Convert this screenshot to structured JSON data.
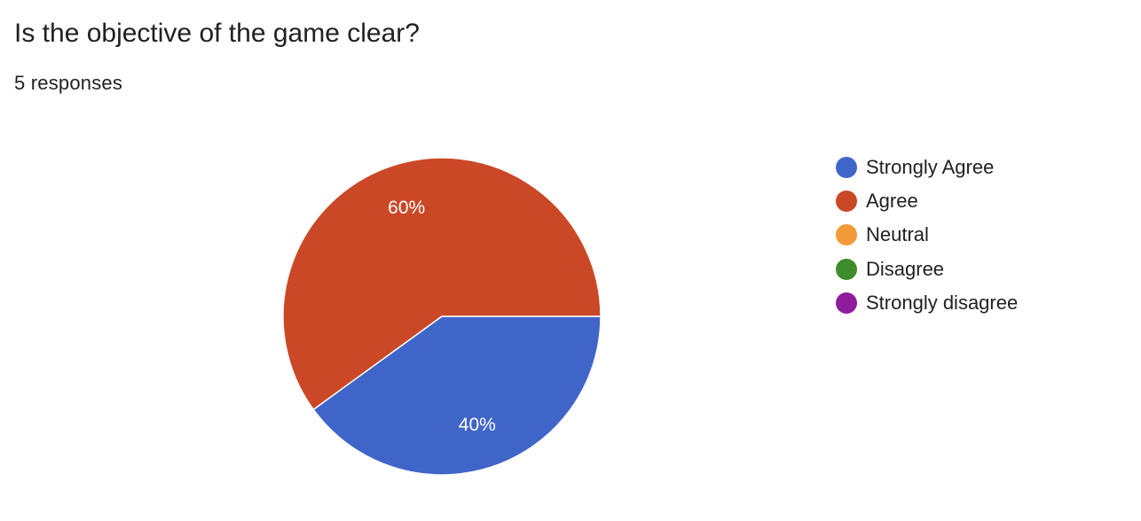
{
  "question": {
    "title": "Is the objective of the game clear?",
    "responses": "5 responses"
  },
  "chart_data": {
    "type": "pie",
    "categories": [
      "Strongly Agree",
      "Agree",
      "Neutral",
      "Disagree",
      "Strongly disagree"
    ],
    "values": [
      40,
      60,
      0,
      0,
      0
    ],
    "data_labels": [
      "40%",
      "60%",
      "",
      "",
      ""
    ],
    "colors": [
      "#4065c9",
      "#cb4827",
      "#f29b38",
      "#3e8d2c",
      "#8e1c9d"
    ],
    "legend_position": "right"
  }
}
